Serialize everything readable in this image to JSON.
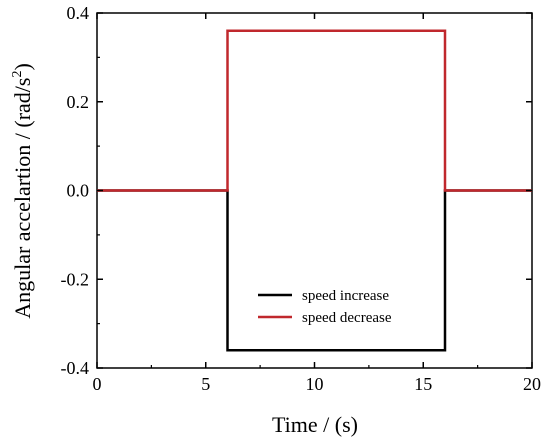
{
  "chart_data": {
    "type": "line",
    "xlabel": "Time / (s)",
    "ylabel_main": "Angular accelartion / (rad/s",
    "ylabel_sup": "2",
    "ylabel_close": ")",
    "xlim": [
      0,
      20
    ],
    "ylim": [
      -0.4,
      0.4
    ],
    "xticks": [
      0,
      5,
      10,
      15,
      20
    ],
    "yticks": [
      -0.4,
      -0.2,
      0.0,
      0.2,
      0.4
    ],
    "xtick_labels": [
      "0",
      "5",
      "10",
      "15",
      "20"
    ],
    "ytick_labels": [
      "-0.4",
      "-0.2",
      "0.0",
      "0.2",
      "0.4"
    ],
    "grid": false,
    "legend_position": "lower-center",
    "series": [
      {
        "name": "speed increase",
        "color": "#000000",
        "x": [
          0,
          6,
          6,
          16,
          16,
          20
        ],
        "y": [
          0,
          0,
          -0.36,
          -0.36,
          0,
          0
        ]
      },
      {
        "name": "speed decrease",
        "color": "#c0282d",
        "x": [
          0,
          6,
          6,
          16,
          16,
          20
        ],
        "y": [
          0,
          0,
          0.36,
          0.36,
          0,
          0
        ]
      }
    ]
  }
}
